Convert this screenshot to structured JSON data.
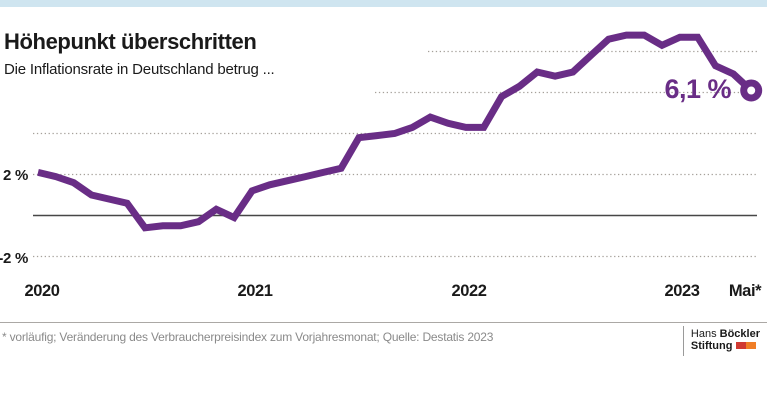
{
  "header": {
    "title": "Höhepunkt überschritten",
    "subtitle": "Die Inflationsrate in Deutschland betrug ..."
  },
  "annotation": {
    "last_value_label": "6,1 %"
  },
  "axes": {
    "y_ticks": [
      "2 %",
      "-2 %"
    ],
    "x_ticks": [
      "2020",
      "2021",
      "2022",
      "2023",
      "Mai*"
    ]
  },
  "footer": {
    "note": "* vorläufig; Veränderung des Verbraucherpreisindex zum Vorjahresmonat; Quelle: Destatis 2023",
    "logo_line1_regular": "Hans ",
    "logo_line1_bold": "Böckler",
    "logo_line2_bold": "Stiftung"
  },
  "colors": {
    "line": "#692d86",
    "topbar": "#cfe5f0",
    "grid": "#a5a09a",
    "zero_axis": "#474747",
    "logo_red": "#d03a32",
    "logo_orange": "#f07e26"
  },
  "chart_data": {
    "type": "line",
    "title": "Höhepunkt überschritten",
    "subtitle": "Die Inflationsrate in Deutschland betrug ...",
    "unit": "Inflationsrate in Prozent (Veränderung des Verbraucherpreisindex zum Vorjahresmonat)",
    "source": "Destatis 2023",
    "x": [
      "2020-01",
      "2020-02",
      "2020-03",
      "2020-04",
      "2020-05",
      "2020-06",
      "2020-07",
      "2020-08",
      "2020-09",
      "2020-10",
      "2020-11",
      "2020-12",
      "2021-01",
      "2021-02",
      "2021-03",
      "2021-04",
      "2021-05",
      "2021-06",
      "2021-07",
      "2021-08",
      "2021-09",
      "2021-10",
      "2021-11",
      "2021-12",
      "2022-01",
      "2022-02",
      "2022-03",
      "2022-04",
      "2022-05",
      "2022-06",
      "2022-07",
      "2022-08",
      "2022-09",
      "2022-10",
      "2022-11",
      "2022-12",
      "2023-01",
      "2023-02",
      "2023-03",
      "2023-04",
      "2023-05"
    ],
    "values": [
      2.1,
      1.9,
      1.6,
      1.0,
      0.8,
      0.6,
      -0.6,
      -0.5,
      -0.5,
      -0.3,
      0.3,
      -0.1,
      1.2,
      1.5,
      1.7,
      1.9,
      2.1,
      2.3,
      3.8,
      3.9,
      4.0,
      4.3,
      4.8,
      4.5,
      4.3,
      4.3,
      5.8,
      6.3,
      7.0,
      6.8,
      7.0,
      7.8,
      8.6,
      8.8,
      8.8,
      8.3,
      8.7,
      8.7,
      7.3,
      6.9,
      6.1
    ],
    "last_point_label": "6,1 %",
    "x_tick_labels_shown": [
      "2020",
      "2021",
      "2022",
      "2023",
      "Mai*"
    ],
    "y_tick_labels_shown": [
      "2 %",
      "-2 %"
    ],
    "gridlines_percent": [
      8,
      6,
      4,
      2,
      -2
    ],
    "zero_axis": true,
    "ylim": [
      -2.9,
      9.8
    ],
    "grid": "dotted-horizontal",
    "legend": "none"
  }
}
